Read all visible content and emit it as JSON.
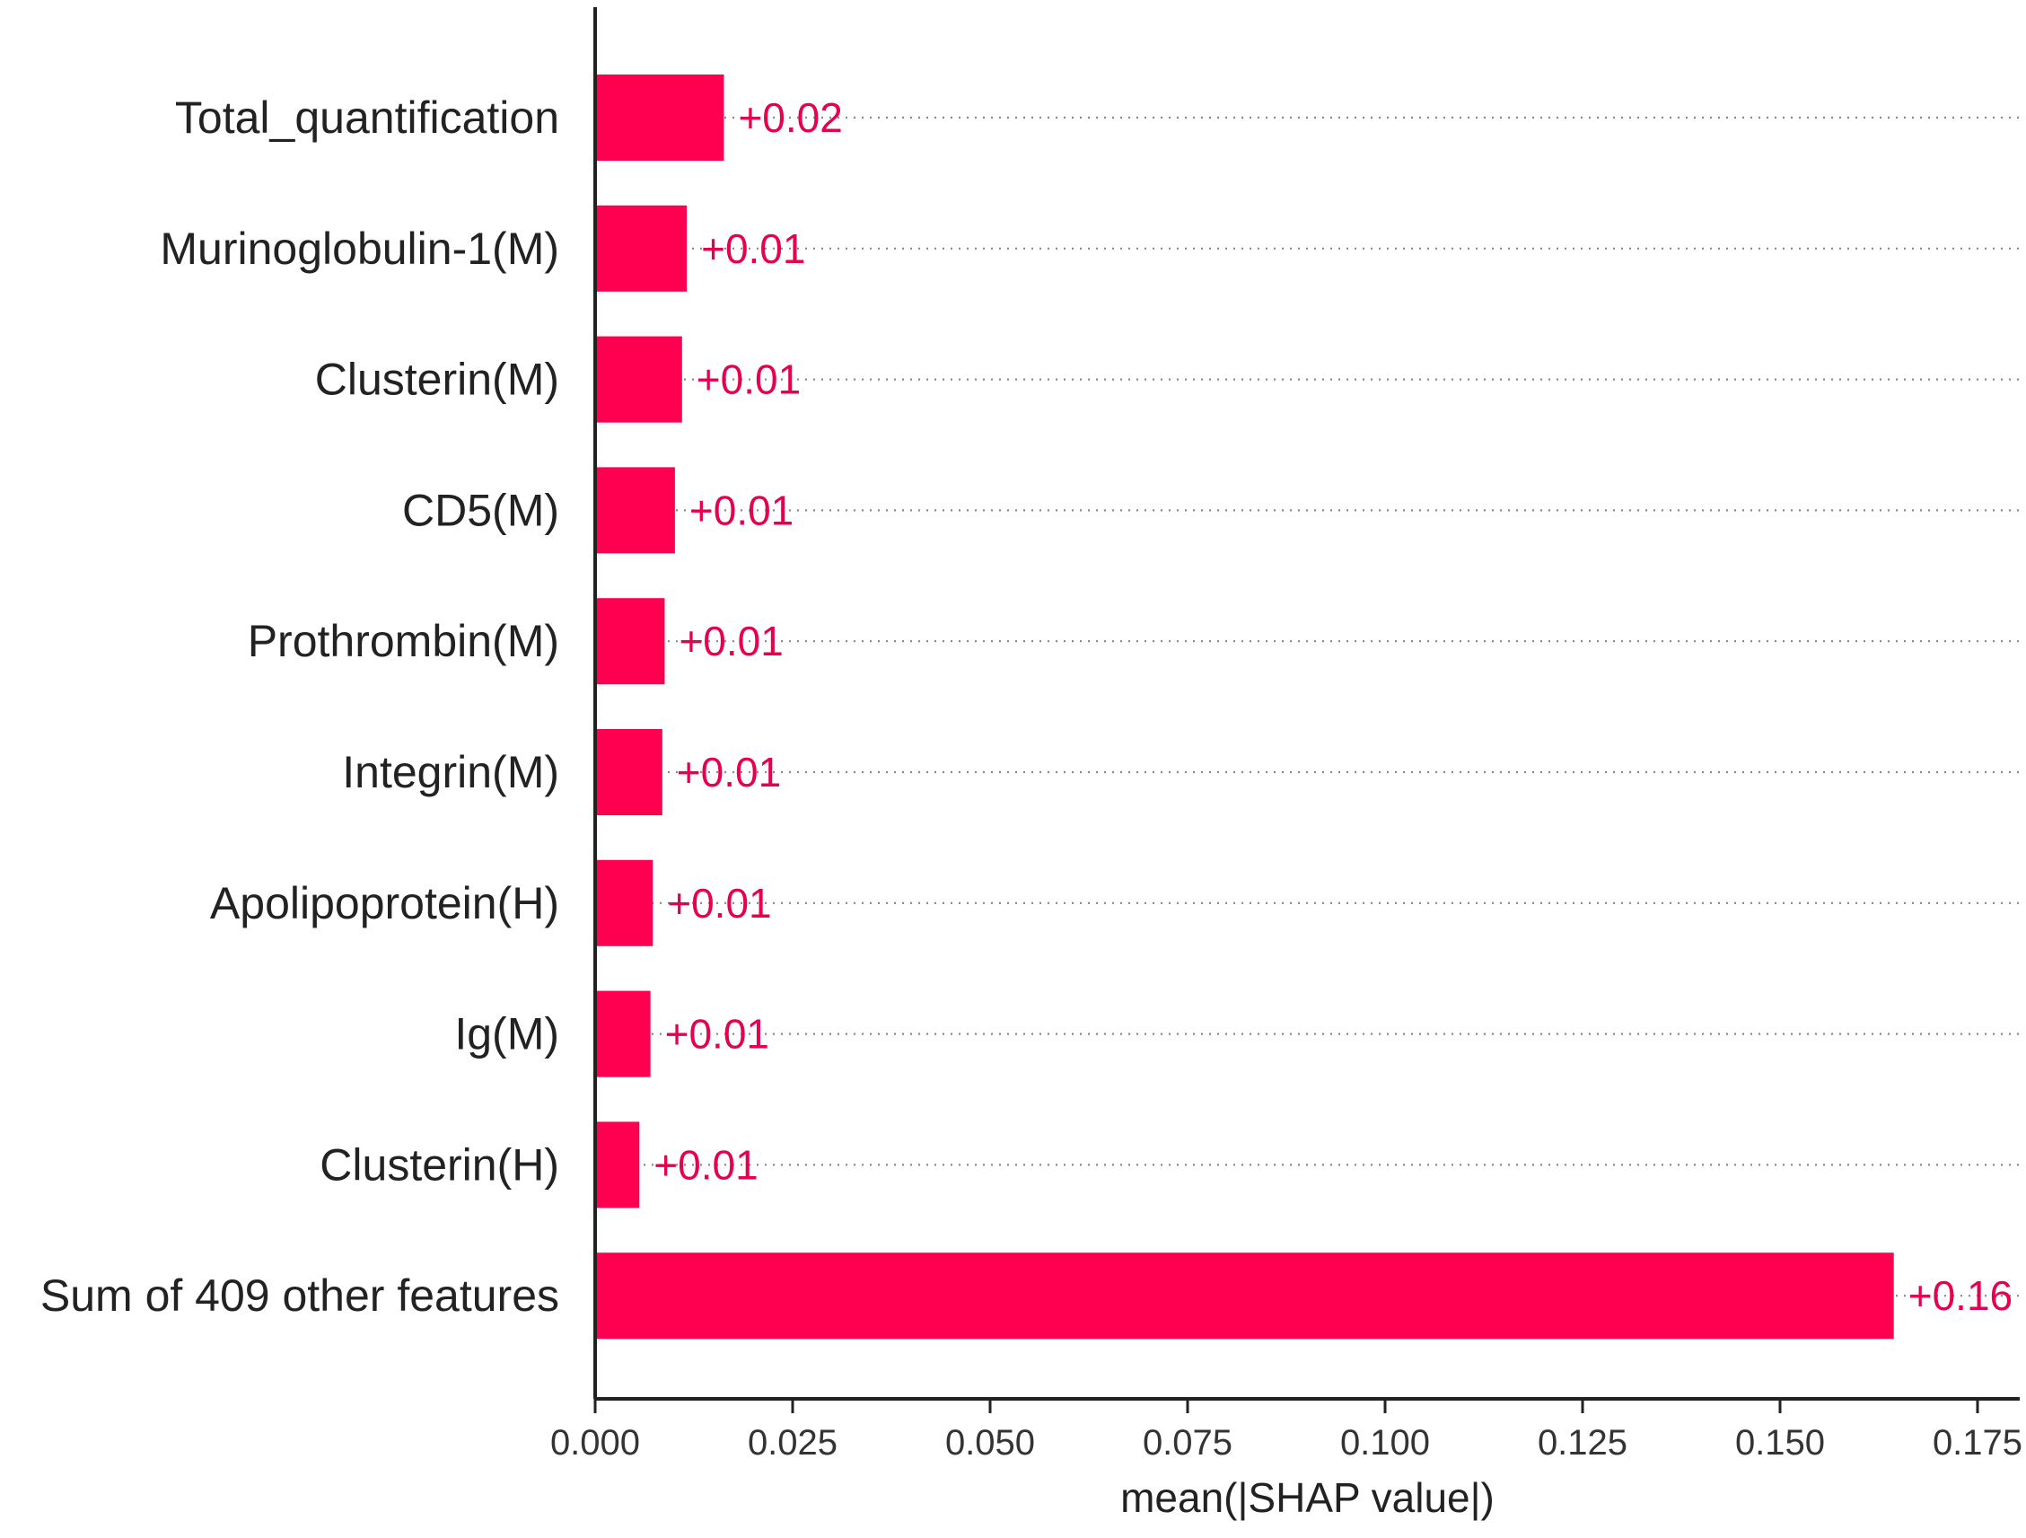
{
  "chart_data": {
    "type": "bar",
    "orientation": "horizontal",
    "title": "",
    "xlabel": "mean(|SHAP value|)",
    "ylabel": "",
    "xlim": [
      0,
      0.18
    ],
    "xticks": [
      0.0,
      0.025,
      0.05,
      0.075,
      0.1,
      0.125,
      0.15,
      0.175
    ],
    "xtick_labels": [
      "0.000",
      "0.025",
      "0.050",
      "0.075",
      "0.100",
      "0.125",
      "0.150",
      "0.175"
    ],
    "grid": "dotted horizontal guide per bar",
    "legend": "none",
    "bar_color": "#ff0051",
    "label_color": "#e6004f",
    "categories": [
      "Total_quantification",
      "Murinoglobulin-1(M)",
      "Clusterin(M)",
      "CD5(M)",
      "Prothrombin(M)",
      "Integrin(M)",
      "Apolipoprotein(H)",
      "Ig(M)",
      "Clusterin(H)",
      "Sum of 409 other features"
    ],
    "values": [
      0.0163,
      0.0116,
      0.011,
      0.0101,
      0.0088,
      0.0085,
      0.0073,
      0.007,
      0.0056,
      0.1644
    ],
    "value_labels": [
      "+0.02",
      "+0.01",
      "+0.01",
      "+0.01",
      "+0.01",
      "+0.01",
      "+0.01",
      "+0.01",
      "+0.01",
      "+0.16"
    ]
  }
}
